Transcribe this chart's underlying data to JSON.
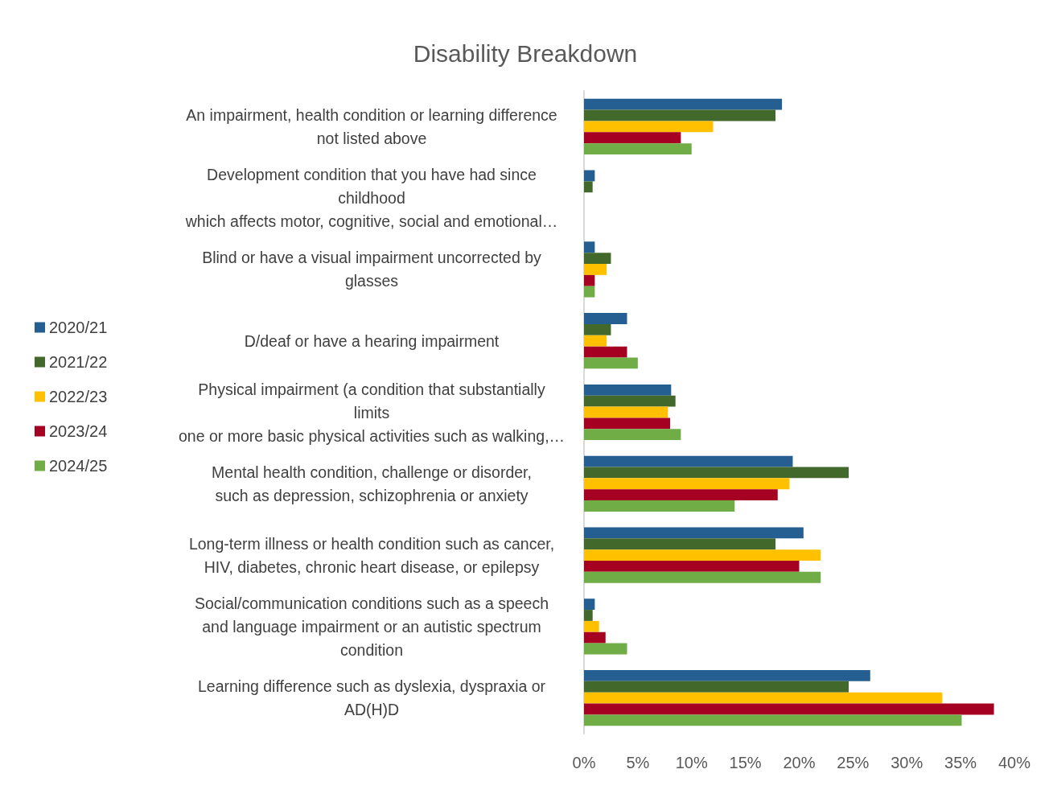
{
  "chart_data": {
    "type": "bar",
    "orientation": "horizontal",
    "title": "Disability Breakdown",
    "categories": [
      "An impairment, health condition or learning difference\nnot listed above",
      "Development condition that you have had since\nchildhood\nwhich affects motor, cognitive, social and emotional…",
      "Blind or have a visual impairment uncorrected by\nglasses",
      "D/deaf or have a hearing impairment",
      "Physical impairment (a condition that substantially\nlimits\none or more basic physical activities such as walking,…",
      "Mental health condition, challenge or disorder,\nsuch as depression, schizophrenia or anxiety",
      "Long-term illness or health condition such as cancer,\nHIV, diabetes, chronic heart disease, or epilepsy",
      "Social/communication conditions such as a speech\nand language impairment or an autistic spectrum\ncondition",
      "Learning difference such as dyslexia, dyspraxia or\nAD(H)D"
    ],
    "series": [
      {
        "name": "2020/21",
        "color": "#255e91",
        "values": [
          18.4,
          1.0,
          1.0,
          4.0,
          8.1,
          19.4,
          20.4,
          1.0,
          26.6
        ]
      },
      {
        "name": "2021/22",
        "color": "#43682b",
        "values": [
          17.8,
          0.8,
          2.5,
          2.5,
          8.5,
          24.6,
          17.8,
          0.8,
          24.6
        ]
      },
      {
        "name": "2022/23",
        "color": "#ffc000",
        "values": [
          12.0,
          0,
          2.1,
          2.1,
          7.8,
          19.1,
          22.0,
          1.4,
          33.3
        ]
      },
      {
        "name": "2023/24",
        "color": "#a50021",
        "values": [
          9.0,
          0,
          1.0,
          4.0,
          8.0,
          18.0,
          20.0,
          2.0,
          38.1
        ]
      },
      {
        "name": "2024/25",
        "color": "#70ad47",
        "values": [
          10.0,
          0,
          1.0,
          5.0,
          9.0,
          14.0,
          22.0,
          4.0,
          35.1
        ]
      }
    ],
    "xlim": [
      0,
      40
    ],
    "xticks": [
      {
        "value": 0,
        "label": "0%"
      },
      {
        "value": 5,
        "label": "5%"
      },
      {
        "value": 10,
        "label": "10%"
      },
      {
        "value": 15,
        "label": "15%"
      },
      {
        "value": 20,
        "label": "20%"
      },
      {
        "value": 25,
        "label": "25%"
      },
      {
        "value": 30,
        "label": "30%"
      },
      {
        "value": 35,
        "label": "35%"
      },
      {
        "value": 40,
        "label": "40%"
      }
    ],
    "grid": false,
    "legend": "left"
  }
}
